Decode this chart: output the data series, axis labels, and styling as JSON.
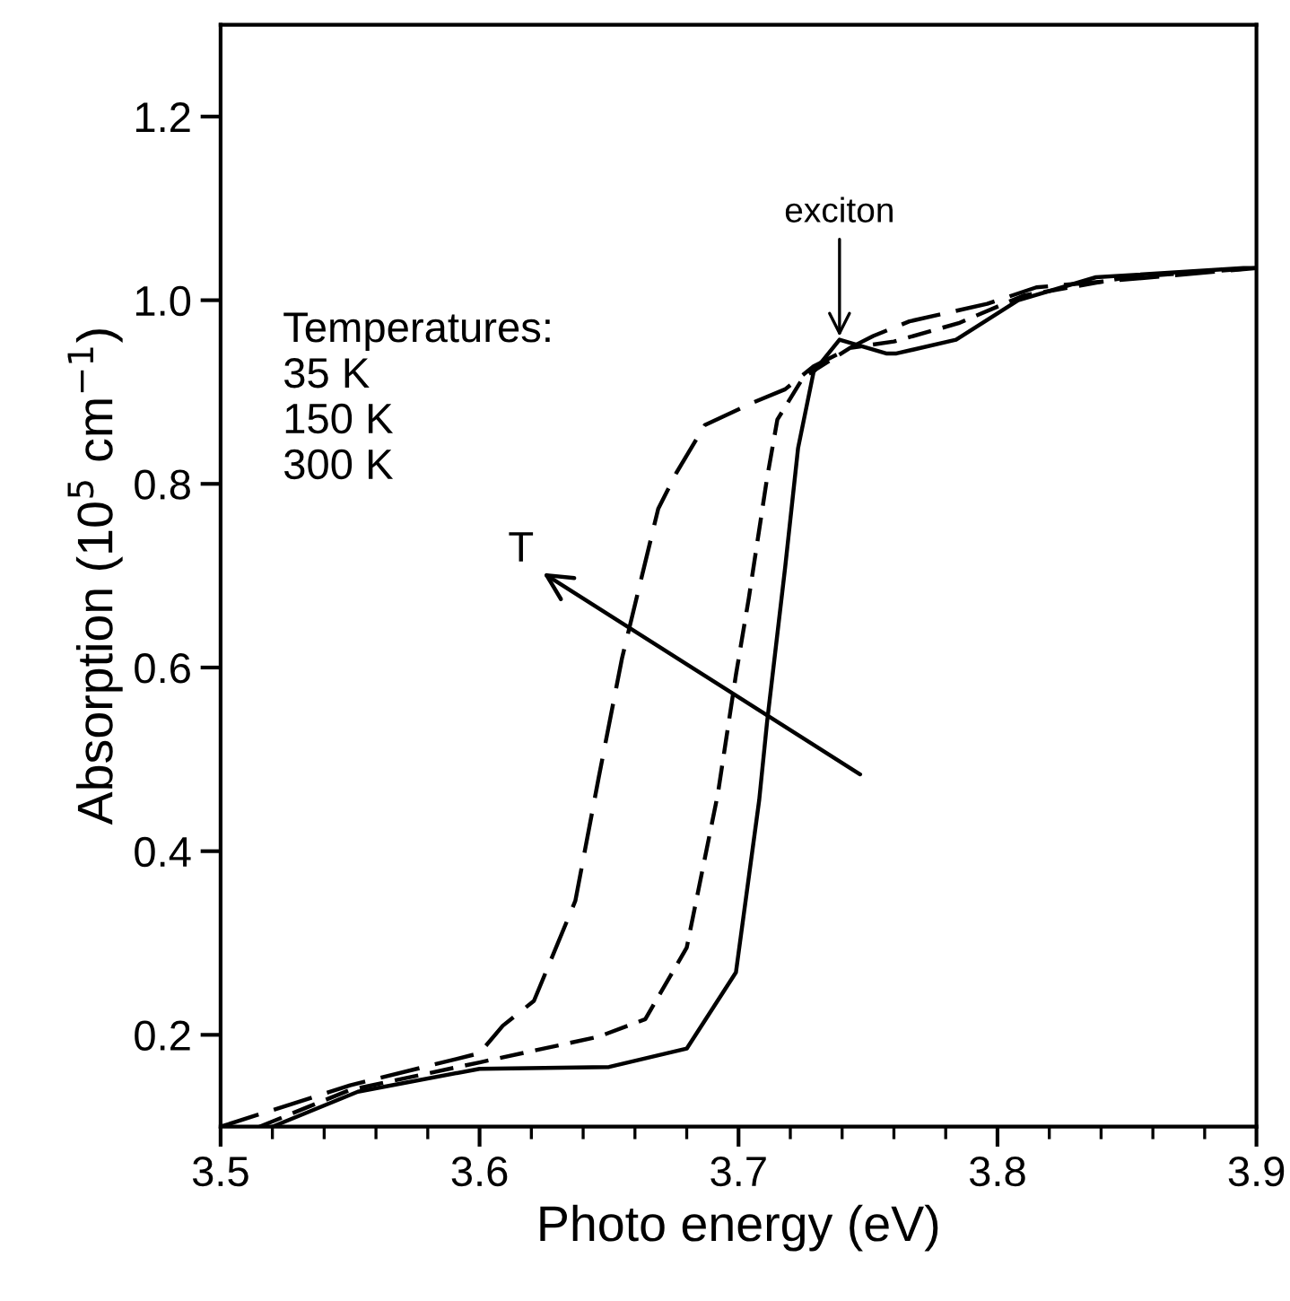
{
  "chart_data": {
    "type": "line",
    "xlabel": "Photo energy (eV)",
    "ylabel": "Absorption (10$^{5}$ cm$^{−1}$)",
    "xlim": [
      3.5,
      3.9
    ],
    "ylim": [
      0.1,
      1.3
    ],
    "xticks": [
      3.5,
      3.6,
      3.7,
      3.8,
      3.9
    ],
    "yticks": [
      0.2,
      0.4,
      0.6,
      0.8,
      {
        "value": 1,
        "label": "1.0"
      },
      1.2
    ],
    "grid": false,
    "legend": false,
    "marker": "none",
    "annotations": [
      "Temperatures:\n35 K\n150 K\n300 K",
      {
        "text": "exciton",
        "x": 3.739,
        "y": 0.955
      },
      "T"
    ],
    "series": [
      {
        "color": "#000000",
        "line_style": "solid",
        "x": [
          3.52,
          3.553,
          3.6,
          3.65,
          3.68,
          3.699,
          3.708,
          3.711,
          3.718,
          3.723,
          3.729,
          3.739,
          3.757,
          3.761,
          3.784,
          3.808,
          3.838,
          3.895,
          3.9
        ],
        "values": [
          0.1,
          0.138,
          0.163,
          0.165,
          0.185,
          0.268,
          0.456,
          0.54,
          0.709,
          0.839,
          0.922,
          0.957,
          0.942,
          0.942,
          0.957,
          1.0,
          1.025,
          1.035,
          1.035
        ]
      },
      {
        "color": "#000000",
        "line_style": "dashed",
        "x": [
          3.515,
          3.55,
          3.6,
          3.646,
          3.664,
          3.68,
          3.692,
          3.699,
          3.704,
          3.711,
          3.715,
          3.725,
          3.743,
          3.76,
          3.785,
          3.81,
          3.85,
          3.9
        ],
        "values": [
          0.1,
          0.14,
          0.17,
          0.198,
          0.217,
          0.295,
          0.462,
          0.592,
          0.676,
          0.806,
          0.87,
          0.916,
          0.948,
          0.955,
          0.975,
          1.005,
          1.025,
          1.035
        ]
      },
      {
        "color": "#000000",
        "line_style": "dashed",
        "x": [
          3.5,
          3.55,
          3.6,
          3.609,
          3.621,
          3.637,
          3.646,
          3.655,
          3.669,
          3.676,
          3.687,
          3.706,
          3.718,
          3.729,
          3.752,
          3.766,
          3.796,
          3.815,
          3.9
        ],
        "values": [
          0.1,
          0.145,
          0.18,
          0.21,
          0.237,
          0.346,
          0.48,
          0.61,
          0.773,
          0.812,
          0.864,
          0.889,
          0.903,
          0.928,
          0.961,
          0.977,
          0.996,
          1.014,
          1.035
        ]
      }
    ]
  }
}
